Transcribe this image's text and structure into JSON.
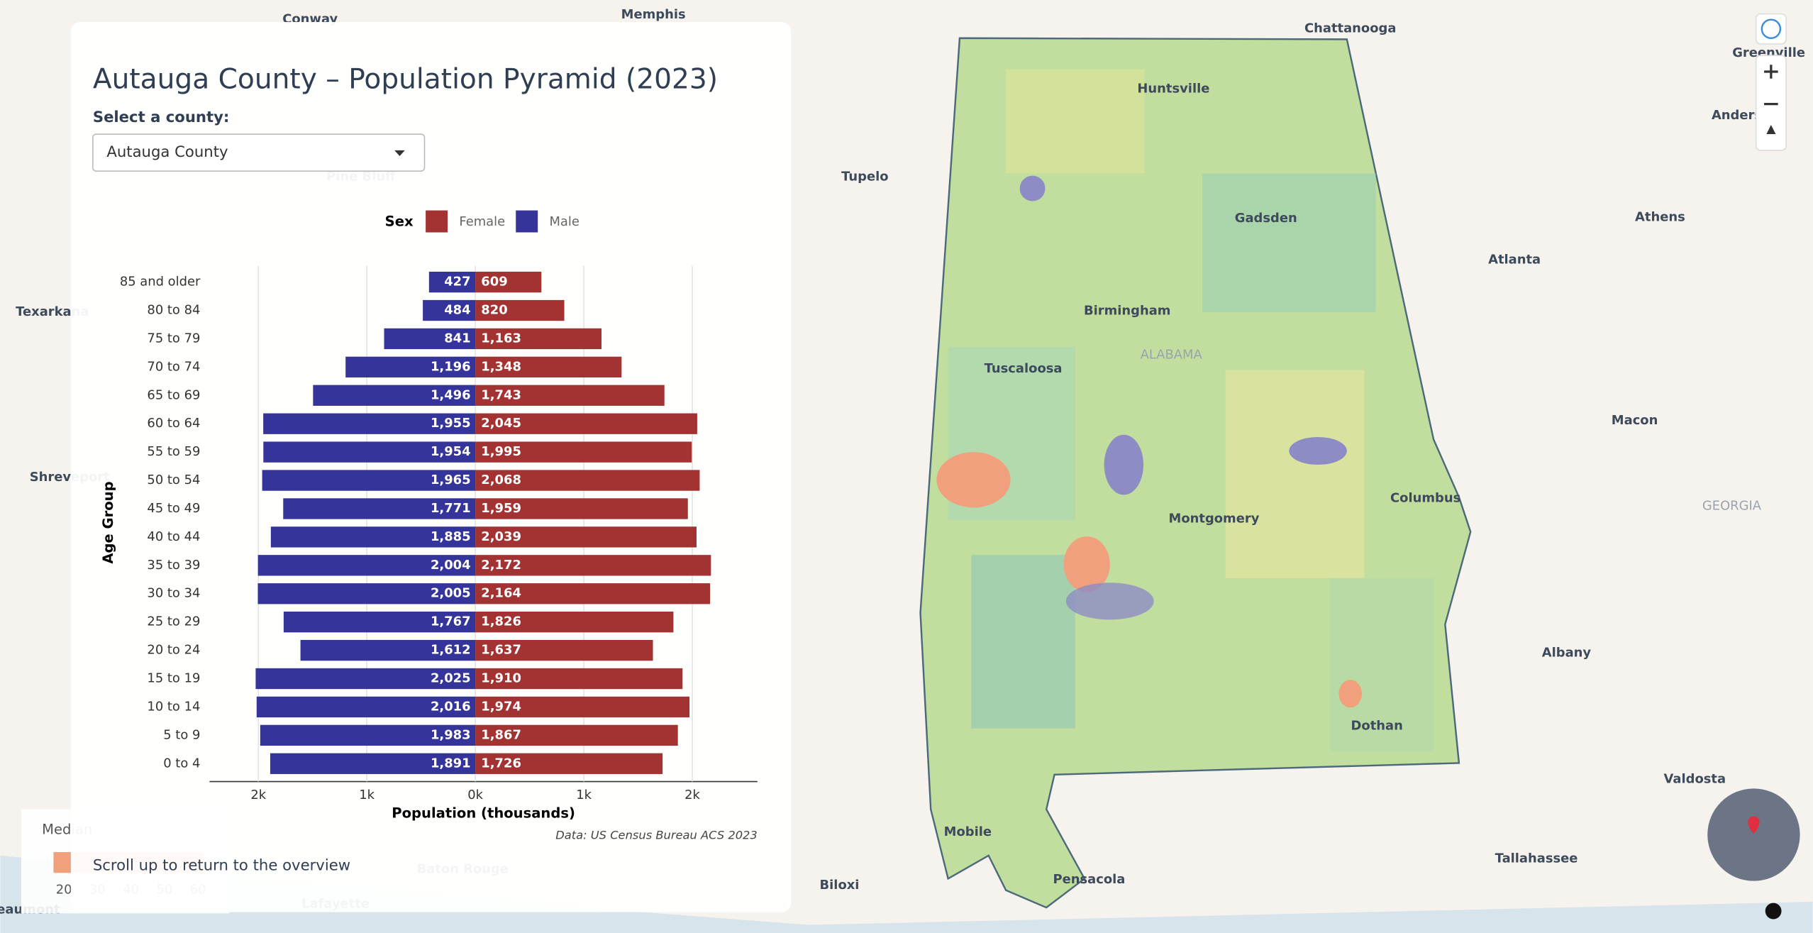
{
  "panel": {
    "title": "Autauga County – Population Pyramid (2023)",
    "select_label": "Select a county:",
    "select_value": "Autauga County",
    "footer": "Scroll up to return to the overview"
  },
  "chart_data": {
    "type": "bar",
    "orientation": "horizontal",
    "legend_title": "Sex",
    "x_label": "Population (thousands)",
    "y_label": "Age Group",
    "source": "Data: US Census Bureau ACS 2023",
    "categories": [
      "85 and older",
      "80 to 84",
      "75 to 79",
      "70 to 74",
      "65 to 69",
      "60 to 64",
      "55 to 59",
      "50 to 54",
      "45 to 49",
      "40 to 44",
      "35 to 39",
      "30 to 34",
      "25 to 29",
      "20 to 24",
      "15 to 19",
      "10 to 14",
      "5 to 9",
      "0 to 4"
    ],
    "series": [
      {
        "name": "Female",
        "color": "#a33232",
        "values": [
          609,
          820,
          1163,
          1348,
          1743,
          2045,
          1995,
          2068,
          1959,
          2039,
          2172,
          2164,
          1826,
          1637,
          1910,
          1974,
          1867,
          1726
        ],
        "value_labels": [
          "609",
          "820",
          "1,163",
          "1,348",
          "1,743",
          "2,045",
          "1,995",
          "2,068",
          "1,959",
          "2,039",
          "2,172",
          "2,164",
          "1,826",
          "1,637",
          "1,910",
          "1,974",
          "1,867",
          "1,726"
        ]
      },
      {
        "name": "Male",
        "color": "#34349a",
        "values": [
          -427,
          -484,
          -841,
          -1196,
          -1496,
          -1955,
          -1954,
          -1965,
          -1771,
          -1885,
          -2004,
          -2005,
          -1767,
          -1612,
          -2025,
          -2016,
          -1983,
          -1891
        ],
        "value_labels": [
          "427",
          "484",
          "841",
          "1,196",
          "1,496",
          "1,955",
          "1,954",
          "1,965",
          "1,771",
          "1,885",
          "2,004",
          "2,005",
          "1,767",
          "1,612",
          "2,025",
          "2,016",
          "1,983",
          "1,891"
        ]
      }
    ],
    "xlim": [
      -2450,
      2600
    ],
    "xticks": [
      {
        "value": -2000,
        "label": "2k"
      },
      {
        "value": -1000,
        "label": "1k"
      },
      {
        "value": 0,
        "label": "0k"
      },
      {
        "value": 1000,
        "label": "1k"
      },
      {
        "value": 2000,
        "label": "2k"
      }
    ],
    "grid": true
  },
  "map": {
    "labels": [
      "Conway",
      "Memphis",
      "Chattanooga",
      "Greenville",
      "Anderson",
      "Huntsville",
      "Tupelo",
      "Gadsden",
      "Athens",
      "Atlanta",
      "Birmingham",
      "ALABAMA",
      "Tuscaloosa",
      "Texarkana",
      "Pine Bluff",
      "Macon",
      "Shreveport",
      "Columbus",
      "GEORGIA",
      "Montgomery",
      "Albany",
      "Dothan",
      "Valdosta",
      "Mobile",
      "Biloxi",
      "Pensacola",
      "Tallahassee",
      "Baton Rouge",
      "Lafayette",
      "Beaumont"
    ],
    "legend": {
      "title": "Median",
      "ticks": [
        20,
        30,
        40,
        50,
        60
      ]
    }
  }
}
